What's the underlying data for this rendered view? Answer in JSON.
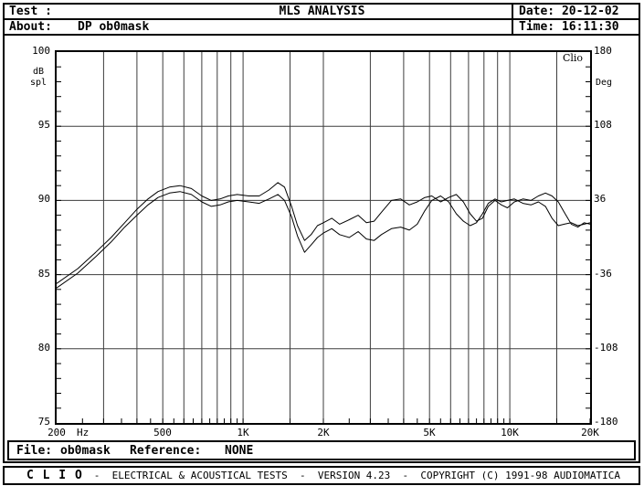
{
  "header": {
    "test_label": "Test :",
    "test_value": "",
    "title": "MLS ANALYSIS",
    "about_label": "About:",
    "about_value": "DP ob0mask",
    "date_label": "Date:",
    "date_value": "20-12-02",
    "time_label": "Time:",
    "time_value": "16:11:30"
  },
  "file_bar": {
    "file_label": "File:",
    "file_value": "ob0mask",
    "reference_label": "Reference:",
    "reference_value": "NONE"
  },
  "status_bar": {
    "brand": "C L I O",
    "text": "-  ELECTRICAL & ACOUSTICAL TESTS  -  VERSION 4.23  -  COPYRIGHT (C) 1991-98 AUDIOMATICA"
  },
  "colors": {
    "ink": "#000000",
    "grid": "#3d3d3d",
    "bg": "#ffffff"
  },
  "chart_data": {
    "type": "line",
    "title": "",
    "corner_label": "Clio",
    "x_axis": {
      "unit_label": "Hz",
      "scale": "log",
      "min": 200,
      "max": 20000,
      "tick_labels": [
        {
          "f": 200,
          "label": "200"
        },
        {
          "f": 500,
          "label": "500"
        },
        {
          "f": 1000,
          "label": "1K"
        },
        {
          "f": 2000,
          "label": "2K"
        },
        {
          "f": 5000,
          "label": "5K"
        },
        {
          "f": 10000,
          "label": "10K"
        },
        {
          "f": 20000,
          "label": "20K"
        }
      ],
      "gridlines": [
        300,
        400,
        500,
        600,
        700,
        800,
        900,
        1000,
        1500,
        2000,
        3000,
        4000,
        5000,
        6000,
        7000,
        8000,
        9000,
        10000,
        15000
      ],
      "minor_ticks": [
        250,
        300,
        350,
        400,
        450,
        500,
        550,
        600,
        650,
        700,
        750,
        800,
        850,
        900,
        950,
        1000,
        1500,
        2000,
        2500,
        3000,
        3500,
        4000,
        4500,
        5000,
        5500,
        6000,
        6500,
        7000,
        7500,
        8000,
        8500,
        9000,
        9500,
        10000,
        15000,
        20000
      ]
    },
    "y_left": {
      "unit": "dB",
      "unit2": "spl",
      "min": 75,
      "max": 100,
      "ticks": [
        100,
        95,
        90,
        85,
        80,
        75
      ],
      "gridlines": [
        95,
        90,
        85,
        80
      ],
      "minor_tick_step": 1
    },
    "y_right": {
      "unit": "Deg",
      "min": -180,
      "max": 180,
      "ticks": [
        180,
        108,
        36,
        -36,
        -108,
        -180
      ]
    },
    "grid": true,
    "legend_position": "none",
    "series": [
      {
        "name": "response-curve-1",
        "color": "#000000",
        "points": [
          [
            200,
            84.4
          ],
          [
            240,
            85.4
          ],
          [
            280,
            86.5
          ],
          [
            320,
            87.5
          ],
          [
            360,
            88.5
          ],
          [
            400,
            89.4
          ],
          [
            440,
            90.1
          ],
          [
            480,
            90.6
          ],
          [
            530,
            90.9
          ],
          [
            580,
            91.0
          ],
          [
            640,
            90.8
          ],
          [
            700,
            90.3
          ],
          [
            760,
            90.0
          ],
          [
            820,
            90.1
          ],
          [
            880,
            90.3
          ],
          [
            950,
            90.4
          ],
          [
            1050,
            90.3
          ],
          [
            1150,
            90.3
          ],
          [
            1250,
            90.7
          ],
          [
            1350,
            91.2
          ],
          [
            1430,
            90.9
          ],
          [
            1520,
            89.6
          ],
          [
            1600,
            88.3
          ],
          [
            1700,
            87.3
          ],
          [
            1800,
            87.7
          ],
          [
            1900,
            88.3
          ],
          [
            2000,
            88.5
          ],
          [
            2150,
            88.8
          ],
          [
            2300,
            88.4
          ],
          [
            2500,
            88.7
          ],
          [
            2700,
            89.0
          ],
          [
            2900,
            88.5
          ],
          [
            3100,
            88.6
          ],
          [
            3300,
            89.2
          ],
          [
            3600,
            90.0
          ],
          [
            3900,
            90.1
          ],
          [
            4200,
            89.7
          ],
          [
            4500,
            89.9
          ],
          [
            4800,
            90.2
          ],
          [
            5100,
            90.3
          ],
          [
            5500,
            89.9
          ],
          [
            5900,
            90.2
          ],
          [
            6300,
            90.4
          ],
          [
            6700,
            89.9
          ],
          [
            7100,
            89.1
          ],
          [
            7500,
            88.6
          ],
          [
            7900,
            88.8
          ],
          [
            8300,
            89.6
          ],
          [
            8800,
            90.0
          ],
          [
            9300,
            89.7
          ],
          [
            9800,
            89.5
          ],
          [
            10400,
            89.9
          ],
          [
            11200,
            90.1
          ],
          [
            12000,
            90.0
          ],
          [
            12800,
            90.3
          ],
          [
            13600,
            90.5
          ],
          [
            14400,
            90.3
          ],
          [
            15200,
            89.9
          ],
          [
            16000,
            89.2
          ],
          [
            17000,
            88.4
          ],
          [
            18000,
            88.2
          ],
          [
            19000,
            88.5
          ],
          [
            20000,
            88.4
          ]
        ]
      },
      {
        "name": "response-curve-2",
        "color": "#000000",
        "points": [
          [
            200,
            84.1
          ],
          [
            240,
            85.1
          ],
          [
            280,
            86.2
          ],
          [
            320,
            87.2
          ],
          [
            360,
            88.2
          ],
          [
            400,
            89.0
          ],
          [
            440,
            89.7
          ],
          [
            480,
            90.2
          ],
          [
            530,
            90.5
          ],
          [
            580,
            90.6
          ],
          [
            640,
            90.4
          ],
          [
            700,
            89.9
          ],
          [
            760,
            89.6
          ],
          [
            820,
            89.7
          ],
          [
            880,
            89.9
          ],
          [
            950,
            90.0
          ],
          [
            1050,
            89.9
          ],
          [
            1150,
            89.8
          ],
          [
            1250,
            90.1
          ],
          [
            1350,
            90.4
          ],
          [
            1430,
            90.0
          ],
          [
            1520,
            88.9
          ],
          [
            1600,
            87.6
          ],
          [
            1700,
            86.5
          ],
          [
            1800,
            87.0
          ],
          [
            1900,
            87.5
          ],
          [
            2000,
            87.8
          ],
          [
            2150,
            88.1
          ],
          [
            2300,
            87.7
          ],
          [
            2500,
            87.5
          ],
          [
            2700,
            87.9
          ],
          [
            2900,
            87.4
          ],
          [
            3100,
            87.3
          ],
          [
            3300,
            87.7
          ],
          [
            3600,
            88.1
          ],
          [
            3900,
            88.2
          ],
          [
            4200,
            88.0
          ],
          [
            4500,
            88.4
          ],
          [
            4800,
            89.3
          ],
          [
            5100,
            90.0
          ],
          [
            5500,
            90.3
          ],
          [
            5900,
            89.9
          ],
          [
            6300,
            89.1
          ],
          [
            6700,
            88.6
          ],
          [
            7100,
            88.3
          ],
          [
            7500,
            88.5
          ],
          [
            7900,
            89.1
          ],
          [
            8300,
            89.8
          ],
          [
            8800,
            90.1
          ],
          [
            9300,
            89.9
          ],
          [
            9800,
            90.0
          ],
          [
            10400,
            90.1
          ],
          [
            11200,
            89.8
          ],
          [
            12000,
            89.7
          ],
          [
            12800,
            89.9
          ],
          [
            13600,
            89.6
          ],
          [
            14400,
            88.8
          ],
          [
            15200,
            88.3
          ],
          [
            16000,
            88.4
          ],
          [
            17000,
            88.5
          ],
          [
            18000,
            88.3
          ],
          [
            19000,
            88.4
          ],
          [
            20000,
            88.5
          ]
        ]
      }
    ]
  }
}
